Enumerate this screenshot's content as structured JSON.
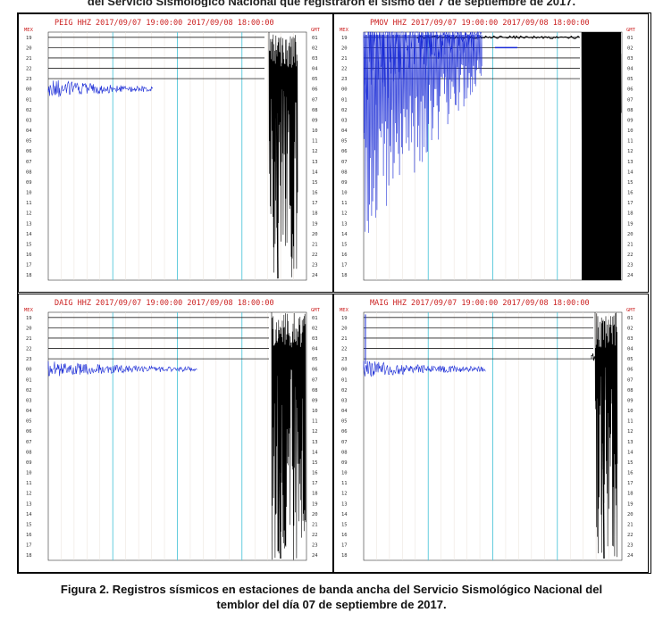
{
  "header_fragment": "del Servicio Sismológico Nacional que registraron el sismo del 7 de septiembre de 2017.",
  "axis": {
    "left_header": "MEX",
    "right_header": "GMT",
    "left_hours": [
      "19",
      "20",
      "21",
      "22",
      "23",
      "00",
      "01",
      "02",
      "03",
      "04",
      "05",
      "06",
      "07",
      "08",
      "09",
      "10",
      "11",
      "12",
      "13",
      "14",
      "15",
      "16",
      "17",
      "18"
    ],
    "right_hours": [
      "01",
      "02",
      "03",
      "04",
      "05",
      "06",
      "07",
      "08",
      "09",
      "10",
      "11",
      "12",
      "13",
      "14",
      "15",
      "16",
      "17",
      "18",
      "19",
      "20",
      "21",
      "22",
      "23",
      "24"
    ]
  },
  "panels": [
    {
      "station": "PEIG",
      "title": "PEIG HHZ 2017/09/07 19:00:00 2017/09/08 18:00:00"
    },
    {
      "station": "PMOV",
      "title": "PMOV HHZ 2017/09/07 19:00:00 2017/09/08 18:00:00"
    },
    {
      "station": "DAIG",
      "title": "DAIG HHZ 2017/09/07 19:00:00 2017/09/08 18:00:00"
    },
    {
      "station": "MAIG",
      "title": "MAIG HHZ 2017/09/07 19:00:00 2017/09/08 18:00:00"
    }
  ],
  "caption": {
    "line1": "Figura 2. Registros sísmicos en estaciones de banda ancha del Servicio Sismológico Nacional del",
    "line2": "temblor del día 07 de septiembre de 2017."
  },
  "colors": {
    "title": "#cc2222",
    "grid_cyan": "#55c8dc",
    "trace_blue": "#1a2bd6",
    "trace_black": "#000000"
  }
}
